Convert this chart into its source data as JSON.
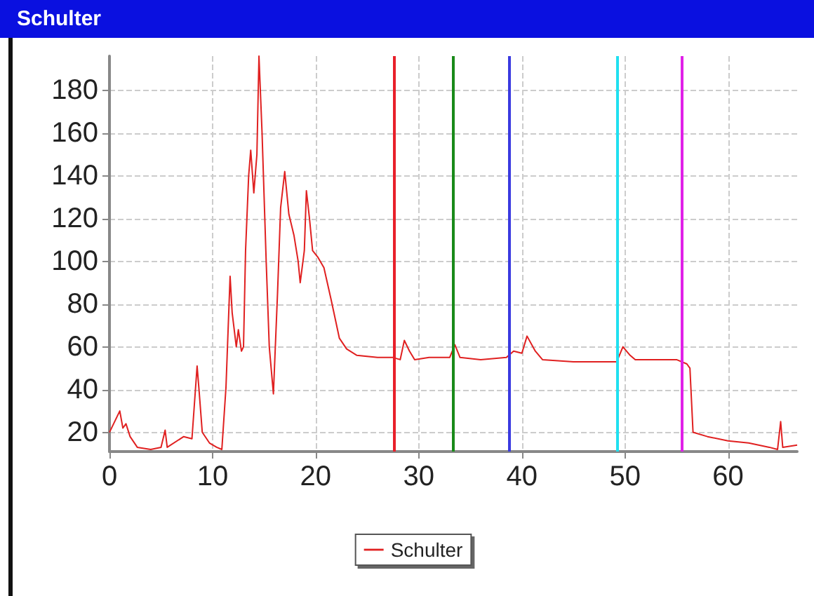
{
  "chart_data": {
    "type": "line",
    "title": "Schulter",
    "x": [
      0,
      0.5,
      1,
      1.3,
      1.6,
      2,
      2.7,
      4,
      5,
      5.4,
      5.6,
      7.2,
      8,
      8.5,
      8.7,
      9,
      9.7,
      10.4,
      10.9,
      11.3,
      11.7,
      11.9,
      12.3,
      12.5,
      12.8,
      13,
      13.2,
      13.5,
      13.7,
      14,
      14.3,
      14.5,
      14.8,
      15.2,
      15.5,
      15.9,
      16.3,
      16.6,
      17,
      17.4,
      17.9,
      18.3,
      18.5,
      18.9,
      19.1,
      19.4,
      19.7,
      20.2,
      20.8,
      21.5,
      22.3,
      23,
      24,
      26,
      27.5,
      28.2,
      28.6,
      29.1,
      29.6,
      31,
      33,
      33.5,
      34,
      36,
      38.5,
      39.2,
      40,
      40.5,
      41.3,
      42,
      45,
      49.2,
      49.8,
      50.5,
      51,
      53,
      55,
      56,
      56.3,
      56.6,
      58,
      60,
      62,
      64,
      64.8,
      65.1,
      65.3,
      66.7
    ],
    "series": [
      {
        "name": "Schulter",
        "color": "#e02020",
        "values": [
          20,
          25,
          30,
          22,
          24,
          18,
          13,
          12,
          13,
          21,
          13,
          18,
          17,
          51,
          39,
          20,
          15,
          13,
          12,
          41,
          93,
          76,
          60,
          68,
          58,
          60,
          105,
          140,
          152,
          132,
          150,
          196,
          160,
          100,
          60,
          38,
          85,
          125,
          142,
          122,
          112,
          100,
          90,
          105,
          133,
          120,
          105,
          102,
          97,
          82,
          64,
          59,
          56,
          55,
          55,
          54,
          63,
          58,
          54,
          55,
          55,
          61,
          55,
          54,
          55,
          58,
          57,
          65,
          58,
          54,
          53,
          53,
          60,
          56,
          54,
          54,
          54,
          52,
          50,
          20,
          18,
          16,
          15,
          13,
          12,
          25,
          13,
          14
        ]
      }
    ],
    "xlim": [
      0,
      66.7
    ],
    "xticks": [
      0,
      10,
      20,
      30,
      40,
      50,
      60
    ],
    "ylim": [
      11,
      196
    ],
    "yticks": [
      20,
      40,
      60,
      80,
      100,
      120,
      140,
      160,
      180
    ],
    "ref_lines": [
      {
        "axis": "x",
        "value": 27.6,
        "color": "#e8202a"
      },
      {
        "axis": "x",
        "value": 33.3,
        "color": "#1a8a1a"
      },
      {
        "axis": "x",
        "value": 38.8,
        "color": "#3a3ae0"
      },
      {
        "axis": "x",
        "value": 49.3,
        "color": "#20e0f0"
      },
      {
        "axis": "x",
        "value": 55.5,
        "color": "#e020e8"
      }
    ],
    "grid": true,
    "legend": "bottom",
    "marker": "none",
    "line_style": "solid"
  }
}
